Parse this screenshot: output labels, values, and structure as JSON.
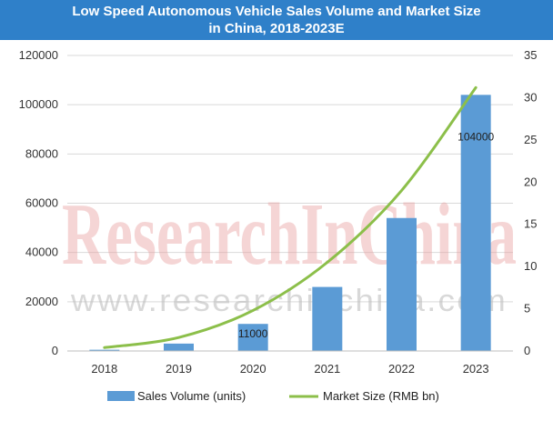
{
  "chart_data": {
    "type": "bar",
    "title": "Low Speed Autonomous Vehicle Sales Volume and Market Size",
    "subtitle": "in China, 2018-2023E",
    "categories": [
      "2018",
      "2019",
      "2020",
      "2021",
      "2022",
      "2023"
    ],
    "series": [
      {
        "name": "Sales Volume (units)",
        "type": "bar",
        "axis": "left",
        "values": [
          500,
          3000,
          11000,
          26000,
          54000,
          104000
        ],
        "color": "#5b9bd5"
      },
      {
        "name": "Market Size (RMB bn)",
        "type": "line",
        "axis": "right",
        "values": [
          0.4,
          1.6,
          4.8,
          10.5,
          19,
          31.2
        ],
        "color": "#8cbf4a"
      }
    ],
    "data_labels": [
      {
        "category": "2020",
        "series": "Sales Volume (units)",
        "text": "11000"
      },
      {
        "category": "2023",
        "series": "Sales Volume (units)",
        "text": "104000"
      }
    ],
    "ylim_left": [
      0,
      120000
    ],
    "ylim_right": [
      0,
      35
    ],
    "left_ticks": [
      "0",
      "20000",
      "40000",
      "60000",
      "80000",
      "100000",
      "120000"
    ],
    "right_ticks": [
      "0",
      "5",
      "10",
      "15",
      "20",
      "25",
      "30",
      "35"
    ],
    "grid": true,
    "legend_position": "bottom"
  },
  "watermark": {
    "brand": "ResearchInChina",
    "url": "www.researchinchina.com"
  }
}
